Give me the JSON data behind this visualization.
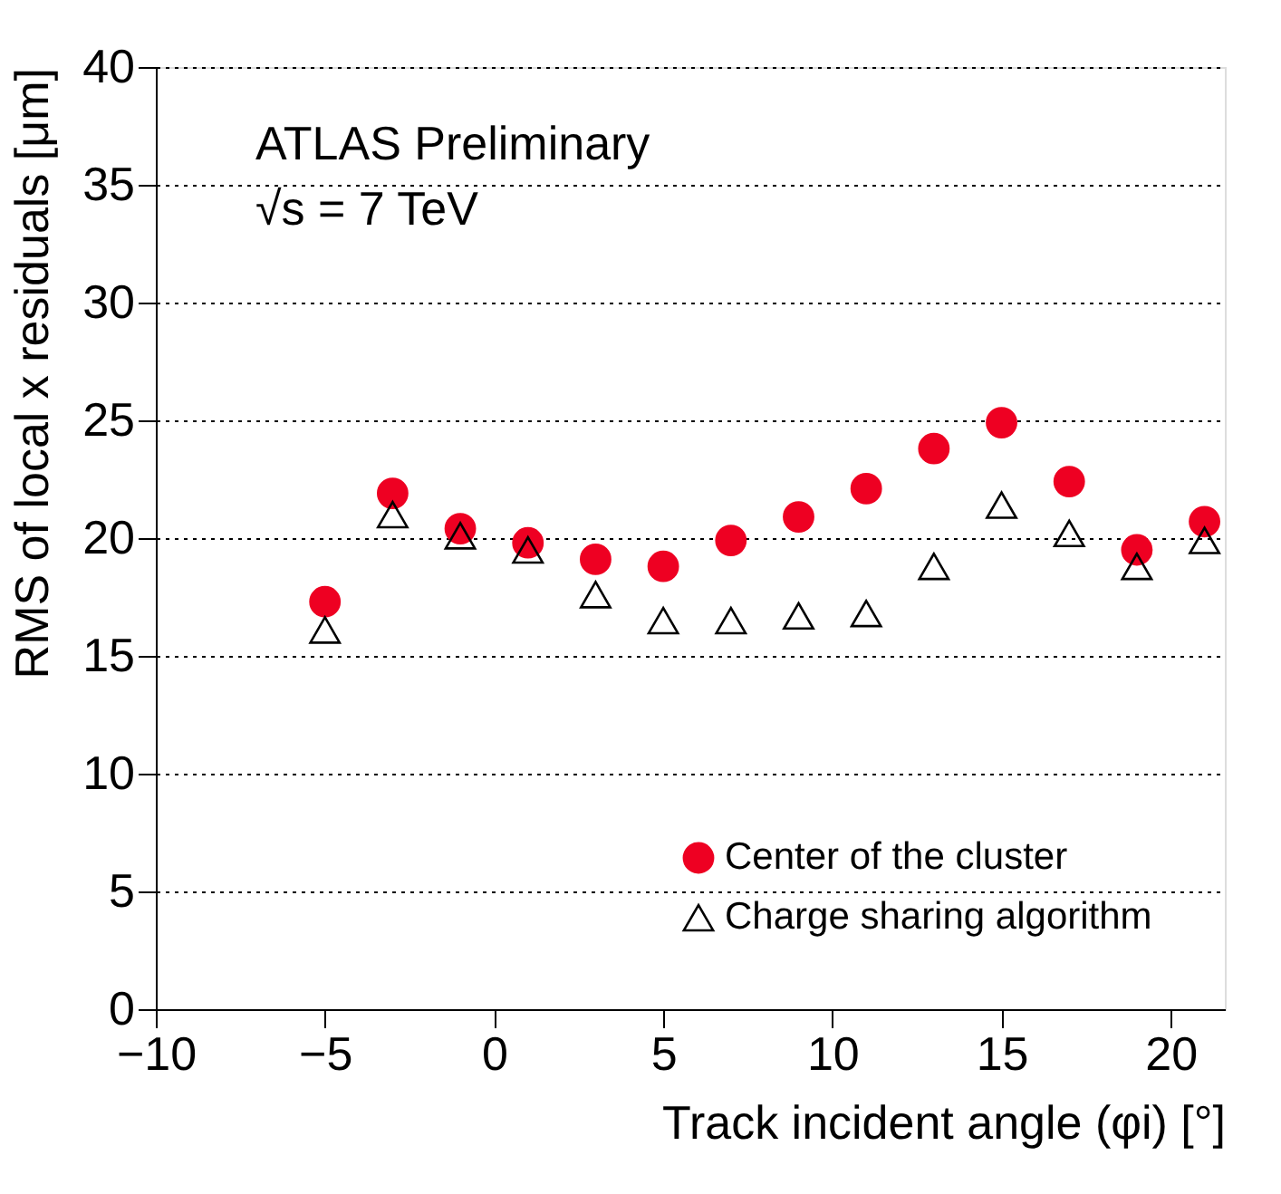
{
  "chart_data": {
    "type": "scatter",
    "xlabel": "Track incident angle (φi) [°]",
    "ylabel": "RMS of local x residuals [μm]",
    "annotations": [
      "ATLAS Preliminary",
      "√s = 7 TeV"
    ],
    "x": [
      -5,
      -3,
      -1,
      1,
      3,
      5,
      7,
      9,
      11,
      13,
      15,
      17,
      19,
      21
    ],
    "series": [
      {
        "name": "Center of the cluster",
        "color": "#ee0022",
        "marker": "circle",
        "values": [
          17.3,
          21.9,
          20.4,
          19.8,
          19.1,
          18.8,
          19.9,
          20.9,
          22.1,
          23.8,
          24.9,
          22.4,
          19.5,
          20.7
        ]
      },
      {
        "name": "Charge sharing algorithm",
        "color": "#000000",
        "marker": "triangle",
        "values": [
          16.1,
          21.0,
          20.1,
          19.5,
          17.6,
          16.5,
          16.5,
          16.7,
          16.8,
          18.8,
          21.4,
          20.2,
          18.8,
          19.9
        ]
      }
    ],
    "xlim": [
      -10,
      21.6
    ],
    "xticks": [
      -10,
      -5,
      0,
      5,
      10,
      15,
      20
    ],
    "ylim": [
      0,
      40
    ],
    "yticks": [
      0,
      5,
      10,
      15,
      20,
      25,
      30,
      35,
      40
    ],
    "grid": "y",
    "legend": "bottom right"
  }
}
